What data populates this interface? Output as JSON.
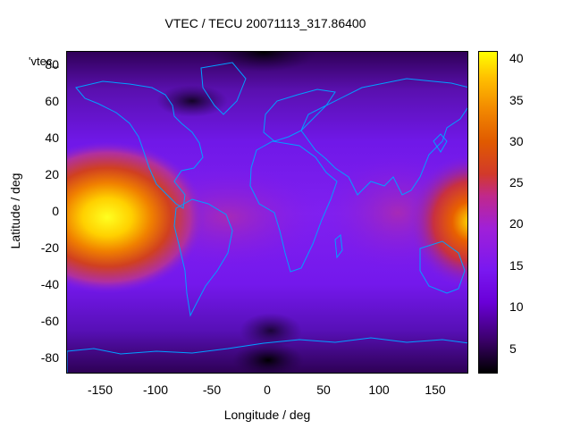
{
  "title": "VTEC / TECU 20071113_317.86400",
  "xlabel": "Longitude / deg",
  "ylabel": "Latitude / deg",
  "key_label": "'vtec_",
  "x_ticks": [
    "-150",
    "-100",
    "-50",
    "0",
    "50",
    "100",
    "150"
  ],
  "y_ticks": [
    "80",
    "60",
    "40",
    "20",
    "0",
    "-20",
    "-40",
    "-60",
    "-80"
  ],
  "colorbar_ticks": [
    "40",
    "35",
    "30",
    "25",
    "20",
    "15",
    "10",
    "5"
  ],
  "colors": {
    "coastline": "#00a0ff",
    "frame": "#000000"
  },
  "chart_data": {
    "type": "heatmap",
    "title": "VTEC / TECU 20071113_317.86400",
    "xlabel": "Longitude / deg",
    "ylabel": "Latitude / deg",
    "xlim": [
      -180,
      180
    ],
    "ylim": [
      -90,
      90
    ],
    "colorbar": {
      "range": [
        2,
        41
      ],
      "ticks": [
        5,
        10,
        15,
        20,
        25,
        30,
        35,
        40
      ]
    },
    "features": [
      {
        "label": "equatorial-maximum-pacific",
        "lon": -165,
        "lat": 8,
        "vtec": 41
      },
      {
        "label": "equatorial-maximum-east",
        "lon": 178,
        "lat": -10,
        "vtec": 38
      },
      {
        "label": "background-minimum-north-pole",
        "lon": 0,
        "lat": 85,
        "vtec": 3
      },
      {
        "label": "background-minimum-south",
        "lon": 0,
        "lat": -80,
        "vtec": 3
      }
    ]
  }
}
